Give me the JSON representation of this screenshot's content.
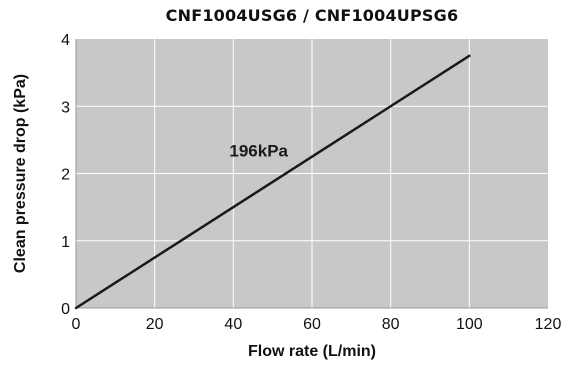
{
  "chart_data": {
    "type": "line",
    "title": "CNF1004USG6 / CNF1004UPSG6",
    "xlabel": "Flow rate (L/min)",
    "ylabel": "Clean pressure drop (kPa)",
    "xlim": [
      0,
      120
    ],
    "ylim": [
      0,
      4
    ],
    "xticks": [
      "0",
      "20",
      "40",
      "60",
      "80",
      "100",
      "120"
    ],
    "yticks": [
      "0",
      "1",
      "2",
      "3",
      "4"
    ],
    "grid": true,
    "plot_background": "#c8c8c8",
    "grid_color": "#ffffff",
    "series": [
      {
        "name": "196kPa",
        "color": "#1a1a1a",
        "x": [
          0,
          100
        ],
        "y": [
          0,
          3.75
        ]
      }
    ],
    "annotations": [
      {
        "text": "196kPa",
        "x": 39,
        "y": 2.25
      }
    ]
  }
}
